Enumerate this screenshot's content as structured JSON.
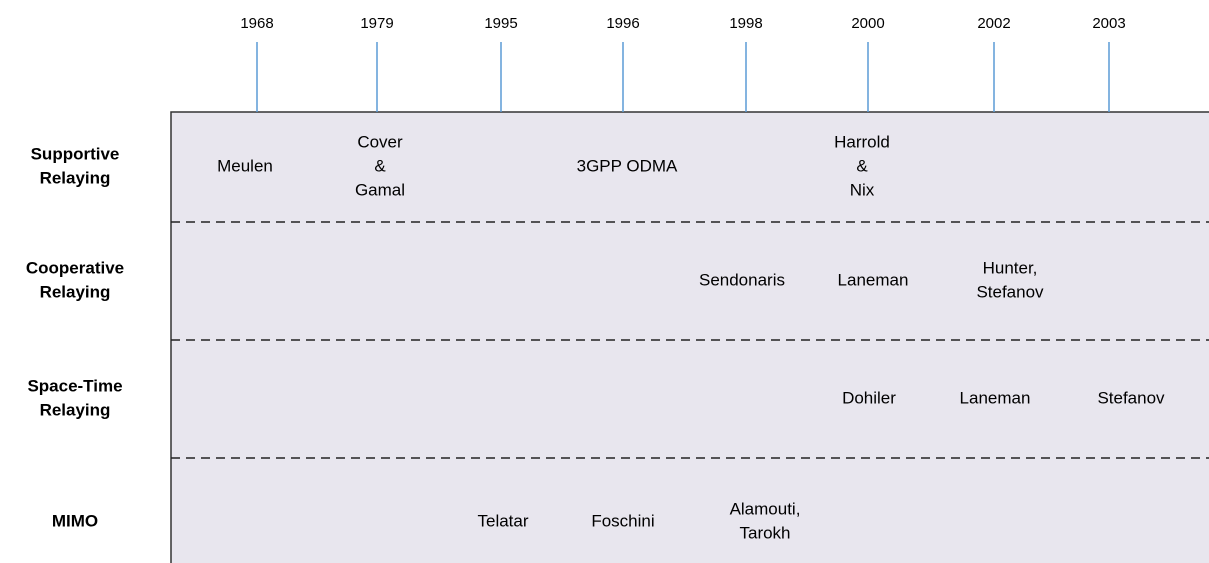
{
  "years": [
    "1968",
    "1979",
    "1995",
    "1996",
    "1998",
    "2000",
    "2002",
    "2003"
  ],
  "rows": [
    {
      "label": [
        "Supportive",
        "Relaying"
      ],
      "entries": [
        [
          "Meulen"
        ],
        [
          "Cover",
          "&",
          "Gamal"
        ],
        [
          "3GPP ODMA"
        ],
        [
          "Harrold",
          "&",
          "Nix"
        ]
      ]
    },
    {
      "label": [
        "Cooperative",
        "Relaying"
      ],
      "entries": [
        [
          "Sendonaris"
        ],
        [
          "Laneman"
        ],
        [
          "Hunter,",
          "Stefanov"
        ]
      ]
    },
    {
      "label": [
        "Space-Time",
        "Relaying"
      ],
      "entries": [
        [
          "Dohiler"
        ],
        [
          "Laneman"
        ],
        [
          "Stefanov"
        ]
      ]
    },
    {
      "label": [
        "MIMO"
      ],
      "entries": [
        [
          "Telatar"
        ],
        [
          "Foschini"
        ],
        [
          "Alamouti,",
          "Tarokh"
        ]
      ]
    }
  ]
}
